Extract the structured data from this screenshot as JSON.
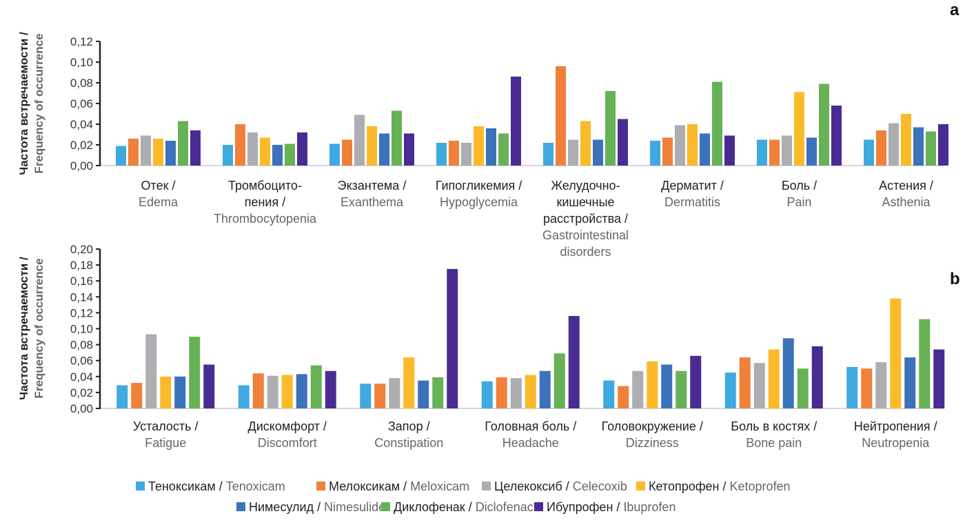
{
  "chart_data": [
    {
      "id": "a",
      "type": "bar",
      "panel_label": "a",
      "ylabel_ru": "Частота встречаемости /",
      "ylabel_en": "Frequency of occurrence",
      "ylim": [
        0,
        0.12
      ],
      "yticks": [
        "0,00",
        "0,02",
        "0,04",
        "0,06",
        "0,08",
        "0,10",
        "0,12"
      ],
      "categories": [
        {
          "ru": [
            "Отек /"
          ],
          "en": [
            "Edema"
          ]
        },
        {
          "ru": [
            "Тромбоцито-",
            "пения /"
          ],
          "en": [
            "Thrombocytopenia"
          ]
        },
        {
          "ru": [
            "Экзантема /"
          ],
          "en": [
            "Exanthema"
          ]
        },
        {
          "ru": [
            "Гипогликемия /"
          ],
          "en": [
            "Hypoglycemia"
          ]
        },
        {
          "ru": [
            "Желудочно-",
            "кишечные",
            "расстройства /"
          ],
          "en": [
            "Gastrointestinal",
            "disorders"
          ]
        },
        {
          "ru": [
            "Дерматит /"
          ],
          "en": [
            "Dermatitis"
          ]
        },
        {
          "ru": [
            "Боль /"
          ],
          "en": [
            "Pain"
          ]
        },
        {
          "ru": [
            "Астения /"
          ],
          "en": [
            "Asthenia"
          ]
        }
      ],
      "series": [
        {
          "name": "Tenoxicam",
          "values": [
            0.019,
            0.02,
            0.021,
            0.022,
            0.022,
            0.024,
            0.025,
            0.025
          ]
        },
        {
          "name": "Meloxicam",
          "values": [
            0.026,
            0.04,
            0.025,
            0.024,
            0.096,
            0.027,
            0.025,
            0.034
          ]
        },
        {
          "name": "Celecoxib",
          "values": [
            0.029,
            0.032,
            0.049,
            0.022,
            0.025,
            0.039,
            0.029,
            0.041
          ]
        },
        {
          "name": "Ketoprofen",
          "values": [
            0.026,
            0.027,
            0.038,
            0.038,
            0.043,
            0.04,
            0.071,
            0.05
          ]
        },
        {
          "name": "Nimesulide",
          "values": [
            0.024,
            0.02,
            0.031,
            0.036,
            0.025,
            0.031,
            0.027,
            0.037
          ]
        },
        {
          "name": "Diclofenac",
          "values": [
            0.043,
            0.021,
            0.053,
            0.031,
            0.072,
            0.081,
            0.079,
            0.033
          ]
        },
        {
          "name": "Ibuprofen",
          "values": [
            0.034,
            0.032,
            0.031,
            0.086,
            0.045,
            0.029,
            0.058,
            0.04
          ]
        }
      ]
    },
    {
      "id": "b",
      "type": "bar",
      "panel_label": "b",
      "ylabel_ru": "Частота встречаемости /",
      "ylabel_en": "Frequency of occurrence",
      "ylim": [
        0,
        0.2
      ],
      "yticks": [
        "0,00",
        "0,02",
        "0,04",
        "0,06",
        "0,08",
        "0,10",
        "0,12",
        "0,14",
        "0,16",
        "0,18",
        "0,20"
      ],
      "categories": [
        {
          "ru": [
            "Усталость /"
          ],
          "en": [
            "Fatigue"
          ]
        },
        {
          "ru": [
            "Дискомфорт /"
          ],
          "en": [
            "Discomfort"
          ]
        },
        {
          "ru": [
            "Запор /"
          ],
          "en": [
            "Constipation"
          ]
        },
        {
          "ru": [
            "Головная боль /"
          ],
          "en": [
            "Headache"
          ]
        },
        {
          "ru": [
            "Головокружение /"
          ],
          "en": [
            "Dizziness"
          ]
        },
        {
          "ru": [
            "Боль в костях /"
          ],
          "en": [
            "Bone pain"
          ]
        },
        {
          "ru": [
            "Нейтропения /"
          ],
          "en": [
            "Neutropenia"
          ]
        }
      ],
      "series": [
        {
          "name": "Tenoxicam",
          "values": [
            0.029,
            0.029,
            0.031,
            0.034,
            0.035,
            0.045,
            0.052
          ]
        },
        {
          "name": "Meloxicam",
          "values": [
            0.032,
            0.044,
            0.031,
            0.039,
            0.028,
            0.064,
            0.05
          ]
        },
        {
          "name": "Celecoxib",
          "values": [
            0.093,
            0.041,
            0.038,
            0.038,
            0.047,
            0.057,
            0.058
          ]
        },
        {
          "name": "Ketoprofen",
          "values": [
            0.04,
            0.042,
            0.064,
            0.042,
            0.059,
            0.074,
            0.138
          ]
        },
        {
          "name": "Nimesulide",
          "values": [
            0.04,
            0.043,
            0.035,
            0.047,
            0.055,
            0.088,
            0.064
          ]
        },
        {
          "name": "Diclofenac",
          "values": [
            0.09,
            0.054,
            0.039,
            0.069,
            0.047,
            0.05,
            0.112
          ]
        },
        {
          "name": "Ibuprofen",
          "values": [
            0.055,
            0.047,
            0.175,
            0.116,
            0.066,
            0.078,
            0.074
          ]
        }
      ]
    }
  ],
  "legend": {
    "position": "bottom-center",
    "items": [
      {
        "ru": "Теноксикам",
        "en": "Tenoxicam",
        "color": "#3FA9E0"
      },
      {
        "ru": "Мелоксикам",
        "en": "Meloxicam",
        "color": "#F0803A"
      },
      {
        "ru": "Целекоксиб",
        "en": "Celecoxib",
        "color": "#ADADB2"
      },
      {
        "ru": "Кетопрофен",
        "en": "Ketoprofen",
        "color": "#FBBA29"
      },
      {
        "ru": "Нимесулид",
        "en": "Nimesulide",
        "color": "#3B72BA"
      },
      {
        "ru": "Диклофенак",
        "en": "Diclofenac",
        "color": "#67B156"
      },
      {
        "ru": "Ибупрофен",
        "en": "Ibuprofen",
        "color": "#4A2B93"
      }
    ]
  }
}
